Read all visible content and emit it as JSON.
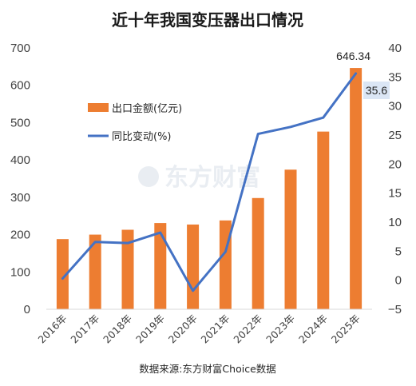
{
  "chart_data": {
    "type": "bar",
    "title": "近十年我国变压器出口情况",
    "categories": [
      "2016年",
      "2017年",
      "2018年",
      "2019年",
      "2020年",
      "2021年",
      "2022年",
      "2023年",
      "2024年",
      "2025年"
    ],
    "series": [
      {
        "name": "出口金额(亿元)",
        "type": "bar",
        "axis": "left",
        "color": "#ED7D31",
        "values": [
          188,
          200,
          213,
          231,
          227,
          238,
          298,
          374,
          476,
          646.34
        ]
      },
      {
        "name": "同比变动(%)",
        "type": "line",
        "axis": "right",
        "color": "#4472C4",
        "values": [
          0.3,
          6.6,
          6.4,
          8.2,
          -1.8,
          4.9,
          25.2,
          26.4,
          28.0,
          35.6
        ]
      }
    ],
    "ylim_left": [
      0,
      700
    ],
    "yticks_left": [
      "0",
      "100",
      "200",
      "300",
      "400",
      "500",
      "600",
      "700"
    ],
    "ylim_right": [
      -5,
      40
    ],
    "yticks_right": [
      "−5",
      "0",
      "5",
      "10",
      "15",
      "20",
      "25",
      "30",
      "35",
      "40"
    ],
    "data_labels": {
      "bar_last": "646.34",
      "line_last": "35.6"
    },
    "legend_position": "upper-left",
    "grid": false
  },
  "watermark": "东方财富",
  "source": "数据来源:东方财富Choice数据"
}
